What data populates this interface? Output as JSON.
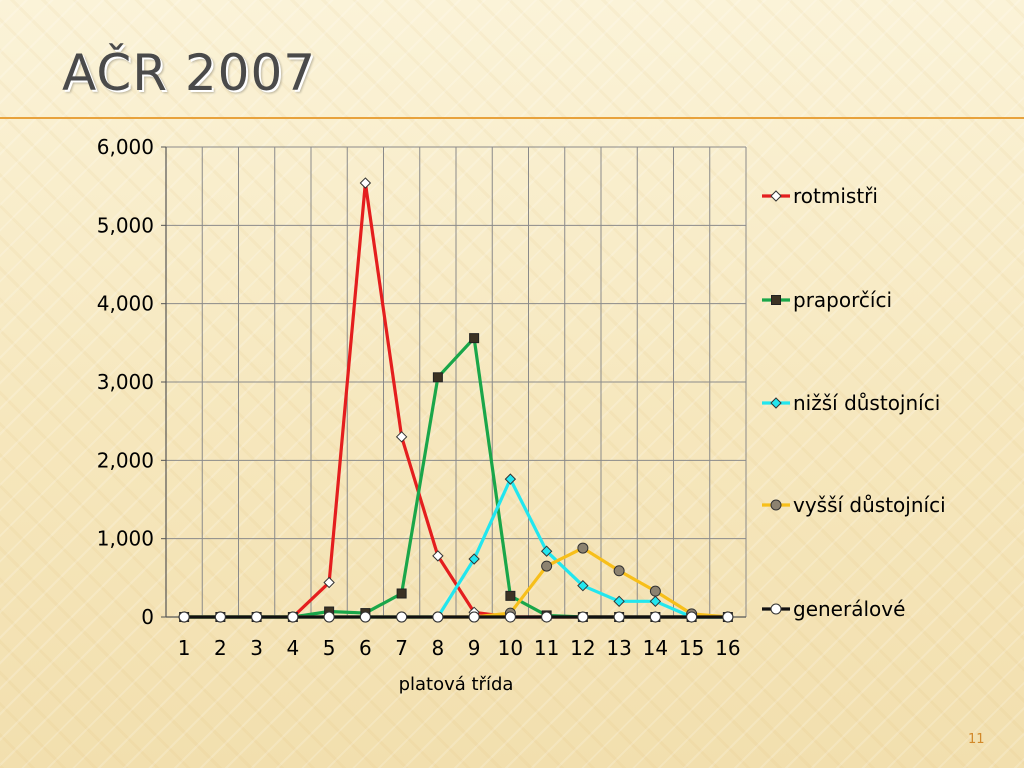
{
  "slide": {
    "title": "AČR 2007",
    "page_number": "11"
  },
  "colors": {
    "accent": "#e8a23c",
    "title_text": "#4a4a4a",
    "page_number": "#d2892a"
  },
  "chart_data": {
    "type": "line",
    "title": "",
    "xlabel": "platová třída",
    "ylabel": "",
    "categories": [
      "1",
      "2",
      "3",
      "4",
      "5",
      "6",
      "7",
      "8",
      "9",
      "10",
      "11",
      "12",
      "13",
      "14",
      "15",
      "16"
    ],
    "ylim": [
      0,
      6000
    ],
    "yticks": [
      0,
      1000,
      2000,
      3000,
      4000,
      5000,
      6000
    ],
    "ytick_labels": [
      "0",
      "1,000",
      "2,000",
      "3,000",
      "4,000",
      "5,000",
      "6,000"
    ],
    "grid": true,
    "legend_position": "right",
    "series": [
      {
        "name": "rotmistři",
        "color": "#e41e1e",
        "marker": "diamond",
        "marker_fill": "#ffffff",
        "values": [
          0,
          0,
          0,
          0,
          440,
          5540,
          2300,
          780,
          60,
          0,
          0,
          0,
          0,
          0,
          0,
          0
        ]
      },
      {
        "name": "praporčíci",
        "color": "#1aa64a",
        "marker": "square",
        "marker_fill": "#3c3223",
        "values": [
          0,
          0,
          0,
          0,
          70,
          50,
          300,
          3060,
          3560,
          270,
          20,
          0,
          0,
          0,
          0,
          0
        ]
      },
      {
        "name": "nižší důstojníci",
        "color": "#22e6ee",
        "marker": "diamond",
        "marker_fill": "#22e6ee",
        "values": [
          0,
          0,
          0,
          0,
          0,
          0,
          0,
          0,
          740,
          1760,
          840,
          400,
          200,
          200,
          0,
          0
        ]
      },
      {
        "name": "vyšší důstojníci",
        "color": "#f7bf1a",
        "marker": "circle",
        "marker_fill": "#8c8270",
        "values": [
          0,
          0,
          0,
          0,
          0,
          0,
          0,
          0,
          0,
          50,
          650,
          880,
          590,
          330,
          40,
          0
        ]
      },
      {
        "name": "generálové",
        "color": "#111111",
        "marker": "circle",
        "marker_fill": "#ffffff",
        "values": [
          0,
          0,
          0,
          0,
          0,
          0,
          0,
          0,
          0,
          0,
          0,
          0,
          0,
          0,
          0,
          0
        ]
      }
    ]
  }
}
